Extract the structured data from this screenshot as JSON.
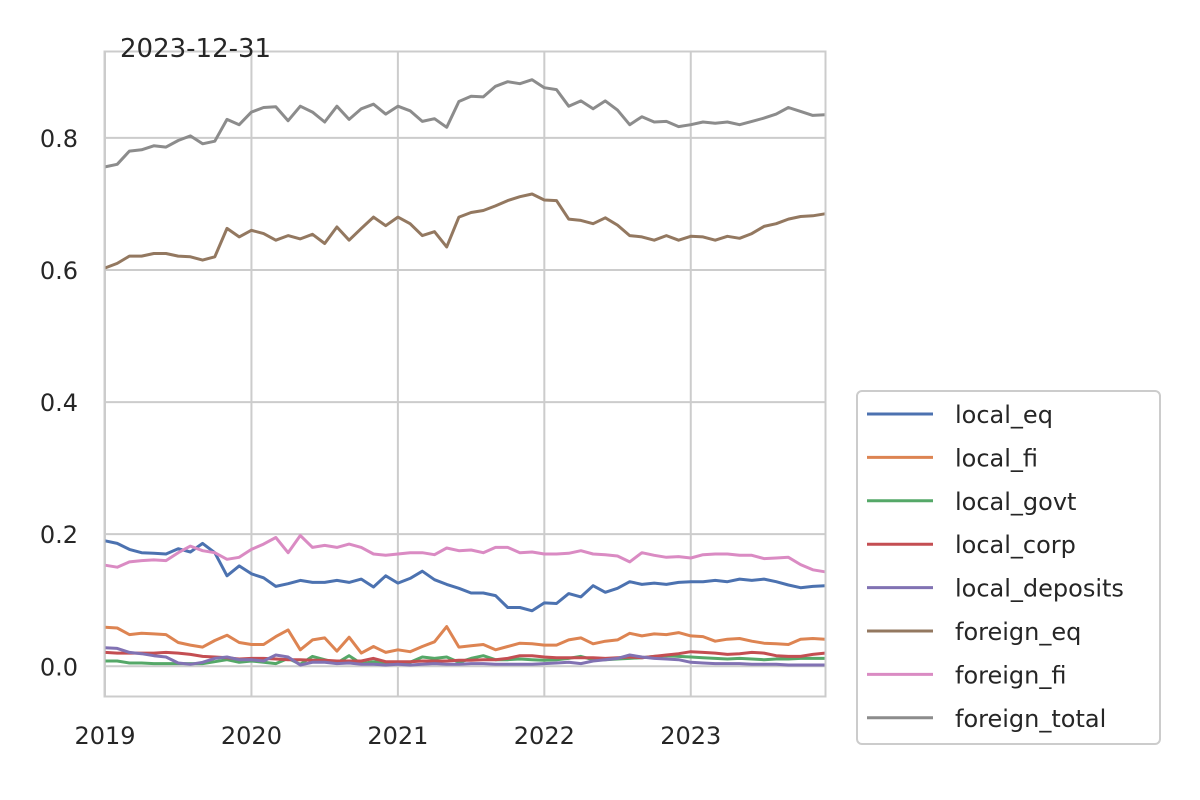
{
  "chart_data": {
    "type": "line",
    "title": "2023-12-31",
    "xlabel": "",
    "ylabel": "",
    "x_start": "2019-01",
    "x_end": "2023-12",
    "x_frequency": "monthly",
    "xlim": [
      "2019-01",
      "2023-12"
    ],
    "ylim": [
      -0.045,
      0.93
    ],
    "x_ticks": [
      {
        "value": "2019-01",
        "label": "2019"
      },
      {
        "value": "2020-01",
        "label": "2020"
      },
      {
        "value": "2021-01",
        "label": "2021"
      },
      {
        "value": "2022-01",
        "label": "2022"
      },
      {
        "value": "2023-01",
        "label": "2023"
      }
    ],
    "y_ticks": [
      {
        "value": 0.0,
        "label": "0.0"
      },
      {
        "value": 0.2,
        "label": "0.2"
      },
      {
        "value": 0.4,
        "label": "0.4"
      },
      {
        "value": 0.6,
        "label": "0.6"
      },
      {
        "value": 0.8,
        "label": "0.8"
      }
    ],
    "grid": true,
    "legend_position": "outside-right-bottom",
    "series": [
      {
        "name": "local_eq",
        "color": "#4c72b0",
        "values": [
          0.19,
          0.186,
          0.177,
          0.172,
          0.171,
          0.17,
          0.178,
          0.173,
          0.186,
          0.172,
          0.137,
          0.152,
          0.14,
          0.134,
          0.121,
          0.125,
          0.13,
          0.127,
          0.127,
          0.13,
          0.127,
          0.132,
          0.12,
          0.137,
          0.126,
          0.133,
          0.144,
          0.131,
          0.124,
          0.118,
          0.111,
          0.111,
          0.107,
          0.089,
          0.089,
          0.084,
          0.096,
          0.095,
          0.11,
          0.105,
          0.122,
          0.112,
          0.118,
          0.128,
          0.124,
          0.126,
          0.124,
          0.127,
          0.128,
          0.128,
          0.13,
          0.128,
          0.132,
          0.13,
          0.132,
          0.128,
          0.123,
          0.119,
          0.121,
          0.122
        ]
      },
      {
        "name": "local_fi",
        "color": "#dd8452",
        "values": [
          0.059,
          0.058,
          0.048,
          0.05,
          0.049,
          0.048,
          0.036,
          0.032,
          0.029,
          0.039,
          0.047,
          0.036,
          0.033,
          0.033,
          0.045,
          0.055,
          0.025,
          0.04,
          0.043,
          0.023,
          0.044,
          0.02,
          0.03,
          0.021,
          0.025,
          0.022,
          0.03,
          0.037,
          0.06,
          0.029,
          0.031,
          0.033,
          0.025,
          0.03,
          0.035,
          0.034,
          0.032,
          0.032,
          0.04,
          0.043,
          0.034,
          0.038,
          0.04,
          0.05,
          0.046,
          0.049,
          0.048,
          0.051,
          0.046,
          0.045,
          0.038,
          0.041,
          0.042,
          0.038,
          0.035,
          0.034,
          0.033,
          0.041,
          0.042,
          0.041
        ]
      },
      {
        "name": "local_govt",
        "color": "#55a868",
        "values": [
          0.008,
          0.008,
          0.005,
          0.005,
          0.004,
          0.004,
          0.004,
          0.004,
          0.004,
          0.007,
          0.01,
          0.006,
          0.008,
          0.006,
          0.004,
          0.012,
          0.003,
          0.015,
          0.01,
          0.005,
          0.016,
          0.004,
          0.007,
          0.006,
          0.006,
          0.006,
          0.014,
          0.012,
          0.014,
          0.006,
          0.012,
          0.016,
          0.01,
          0.01,
          0.011,
          0.01,
          0.009,
          0.01,
          0.012,
          0.015,
          0.01,
          0.01,
          0.011,
          0.012,
          0.013,
          0.015,
          0.016,
          0.015,
          0.014,
          0.013,
          0.012,
          0.011,
          0.012,
          0.011,
          0.01,
          0.011,
          0.011,
          0.012,
          0.012,
          0.012
        ]
      },
      {
        "name": "local_corp",
        "color": "#c44e52",
        "values": [
          0.021,
          0.02,
          0.02,
          0.02,
          0.02,
          0.021,
          0.02,
          0.018,
          0.015,
          0.014,
          0.013,
          0.011,
          0.012,
          0.012,
          0.011,
          0.01,
          0.01,
          0.009,
          0.009,
          0.008,
          0.008,
          0.008,
          0.012,
          0.007,
          0.007,
          0.007,
          0.008,
          0.008,
          0.008,
          0.009,
          0.009,
          0.01,
          0.01,
          0.012,
          0.016,
          0.016,
          0.014,
          0.013,
          0.013,
          0.013,
          0.013,
          0.012,
          0.013,
          0.014,
          0.013,
          0.015,
          0.017,
          0.019,
          0.022,
          0.021,
          0.02,
          0.018,
          0.019,
          0.021,
          0.02,
          0.016,
          0.015,
          0.015,
          0.018,
          0.02
        ]
      },
      {
        "name": "local_deposits",
        "color": "#8172b3",
        "values": [
          0.028,
          0.027,
          0.021,
          0.019,
          0.016,
          0.014,
          0.005,
          0.003,
          0.006,
          0.012,
          0.014,
          0.01,
          0.01,
          0.008,
          0.017,
          0.014,
          0.002,
          0.006,
          0.006,
          0.004,
          0.005,
          0.003,
          0.003,
          0.002,
          0.003,
          0.002,
          0.003,
          0.004,
          0.003,
          0.003,
          0.004,
          0.004,
          0.003,
          0.003,
          0.003,
          0.003,
          0.004,
          0.005,
          0.006,
          0.004,
          0.008,
          0.01,
          0.012,
          0.017,
          0.014,
          0.012,
          0.011,
          0.01,
          0.006,
          0.005,
          0.004,
          0.004,
          0.004,
          0.003,
          0.003,
          0.003,
          0.002,
          0.002,
          0.002,
          0.002
        ]
      },
      {
        "name": "foreign_eq",
        "color": "#937860",
        "values": [
          0.603,
          0.61,
          0.621,
          0.621,
          0.625,
          0.625,
          0.621,
          0.62,
          0.615,
          0.62,
          0.663,
          0.65,
          0.66,
          0.655,
          0.645,
          0.652,
          0.647,
          0.654,
          0.64,
          0.665,
          0.645,
          0.663,
          0.68,
          0.667,
          0.68,
          0.67,
          0.652,
          0.658,
          0.635,
          0.68,
          0.687,
          0.69,
          0.697,
          0.705,
          0.711,
          0.715,
          0.706,
          0.705,
          0.677,
          0.675,
          0.67,
          0.679,
          0.668,
          0.652,
          0.65,
          0.645,
          0.652,
          0.645,
          0.651,
          0.65,
          0.645,
          0.651,
          0.648,
          0.655,
          0.666,
          0.67,
          0.677,
          0.681,
          0.682,
          0.685
        ]
      },
      {
        "name": "foreign_fi",
        "color": "#da8bc3",
        "values": [
          0.153,
          0.15,
          0.158,
          0.16,
          0.161,
          0.16,
          0.172,
          0.182,
          0.175,
          0.172,
          0.162,
          0.165,
          0.177,
          0.185,
          0.195,
          0.172,
          0.198,
          0.18,
          0.183,
          0.18,
          0.185,
          0.18,
          0.17,
          0.168,
          0.17,
          0.172,
          0.172,
          0.169,
          0.179,
          0.175,
          0.176,
          0.172,
          0.18,
          0.18,
          0.172,
          0.173,
          0.17,
          0.17,
          0.171,
          0.175,
          0.17,
          0.169,
          0.167,
          0.158,
          0.172,
          0.168,
          0.165,
          0.166,
          0.164,
          0.169,
          0.17,
          0.17,
          0.168,
          0.168,
          0.163,
          0.164,
          0.165,
          0.154,
          0.146,
          0.143
        ]
      },
      {
        "name": "foreign_total",
        "color": "#8c8c8c",
        "values": [
          0.756,
          0.76,
          0.78,
          0.782,
          0.788,
          0.786,
          0.796,
          0.803,
          0.791,
          0.795,
          0.828,
          0.82,
          0.839,
          0.846,
          0.847,
          0.826,
          0.848,
          0.839,
          0.824,
          0.848,
          0.828,
          0.844,
          0.851,
          0.836,
          0.848,
          0.841,
          0.825,
          0.829,
          0.816,
          0.855,
          0.863,
          0.862,
          0.878,
          0.885,
          0.882,
          0.888,
          0.876,
          0.873,
          0.848,
          0.856,
          0.844,
          0.856,
          0.842,
          0.82,
          0.832,
          0.824,
          0.825,
          0.817,
          0.82,
          0.824,
          0.822,
          0.824,
          0.82,
          0.825,
          0.83,
          0.836,
          0.846,
          0.84,
          0.834,
          0.835
        ]
      }
    ]
  }
}
